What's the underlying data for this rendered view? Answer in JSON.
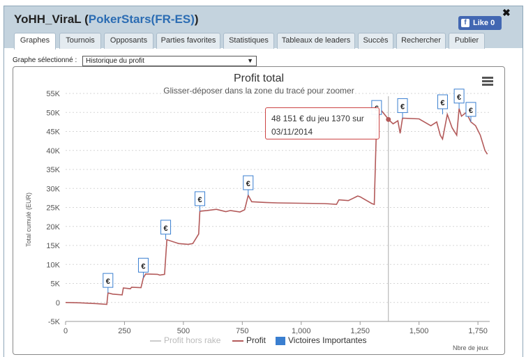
{
  "header": {
    "player_name": "YoHH_ViraL",
    "open_paren": "(",
    "site_name": "PokerStars(FR-ES)",
    "close_paren": ")",
    "close_symbol": "✖",
    "fb_like_label": "Like 0"
  },
  "tabs": [
    {
      "label": "Graphes",
      "active": true
    },
    {
      "label": "Tournois"
    },
    {
      "label": "Opposants"
    },
    {
      "label": "Parties favorites"
    },
    {
      "label": "Statistiques"
    },
    {
      "label": "Tableaux de leaders"
    },
    {
      "label": "Succès"
    },
    {
      "label": "Rechercher"
    },
    {
      "label": "Publier"
    }
  ],
  "graph_selector": {
    "label": "Graphe sélectionné :",
    "selected": "Historique du profit",
    "arrow": "▼"
  },
  "colors": {
    "profit_line": "#b35a5a",
    "victory_marker": "#3a7fd0",
    "rake_line": "#cccccc",
    "grid": "#d5d5d5",
    "header_bg": "#c4d3de",
    "fb_blue": "#4267b2"
  },
  "tooltip": {
    "line1": "48 151 € du jeu 1370 sur",
    "line2": "03/11/2014"
  },
  "chart_data": {
    "type": "line",
    "title": "Profit total",
    "subtitle": "Glisser-déposer dans la zone du tracé pour zoomer",
    "xlabel": "Nbre de jeux",
    "ylabel": "Total cumulé (EUR)",
    "xlim": [
      0,
      1800
    ],
    "ylim": [
      -5000,
      55000
    ],
    "x_ticks": [
      0,
      250,
      500,
      750,
      1000,
      1250,
      1500,
      1750
    ],
    "x_tick_labels": [
      "0",
      "250",
      "500",
      "750",
      "1,000",
      "1,250",
      "1,500",
      "1,750"
    ],
    "y_ticks": [
      -5000,
      0,
      5000,
      10000,
      15000,
      20000,
      25000,
      30000,
      35000,
      40000,
      45000,
      50000,
      55000
    ],
    "y_tick_labels": [
      "-5K",
      "0",
      "5K",
      "10K",
      "15K",
      "20K",
      "25K",
      "30K",
      "35K",
      "40K",
      "45K",
      "50K",
      "55K"
    ],
    "grid": true,
    "legend_position": "bottom",
    "legend": [
      "Profit hors rake",
      "Profit",
      "Victoires Importantes"
    ],
    "series": [
      {
        "name": "Profit",
        "x": [
          0,
          60,
          130,
          175,
          180,
          200,
          240,
          245,
          275,
          280,
          320,
          330,
          340,
          390,
          400,
          420,
          430,
          480,
          520,
          540,
          565,
          570,
          600,
          640,
          680,
          700,
          740,
          760,
          775,
          790,
          850,
          900,
          1000,
          1100,
          1150,
          1160,
          1200,
          1240,
          1250,
          1300,
          1310,
          1320,
          1340,
          1360,
          1370,
          1390,
          1410,
          1420,
          1430,
          1500,
          1550,
          1575,
          1590,
          1600,
          1620,
          1640,
          1660,
          1670,
          1680,
          1700,
          1720,
          1740,
          1760,
          1780,
          1790
        ],
        "y": [
          0,
          -100,
          -300,
          -500,
          2500,
          2200,
          2000,
          3800,
          3600,
          4000,
          3900,
          6500,
          7500,
          7400,
          7200,
          7400,
          16500,
          15500,
          15300,
          15500,
          18000,
          24000,
          24200,
          24500,
          23900,
          24200,
          23800,
          24400,
          28200,
          26500,
          26300,
          26200,
          26100,
          26000,
          25800,
          27000,
          26800,
          28000,
          27800,
          26000,
          25800,
          48000,
          50500,
          49000,
          48151,
          47000,
          47800,
          44500,
          48500,
          48300,
          46500,
          47500,
          44000,
          43000,
          49500,
          46000,
          44000,
          51000,
          49000,
          50000,
          47500,
          46500,
          44000,
          40000,
          39000
        ]
      }
    ],
    "victory_markers": [
      {
        "x": 180,
        "y": 2500,
        "label": "€"
      },
      {
        "x": 330,
        "y": 6500,
        "label": "€"
      },
      {
        "x": 425,
        "y": 16500,
        "label": "€"
      },
      {
        "x": 570,
        "y": 24000,
        "label": "€"
      },
      {
        "x": 775,
        "y": 28200,
        "label": "€"
      },
      {
        "x": 1320,
        "y": 48000,
        "label": "€"
      },
      {
        "x": 1430,
        "y": 48500,
        "label": "€"
      },
      {
        "x": 1600,
        "y": 49500,
        "label": "€"
      },
      {
        "x": 1670,
        "y": 51000,
        "label": "€"
      },
      {
        "x": 1720,
        "y": 47500,
        "label": "€"
      }
    ],
    "crosshair_x": 1370,
    "highlight": {
      "x": 1370,
      "y": 48151
    }
  }
}
